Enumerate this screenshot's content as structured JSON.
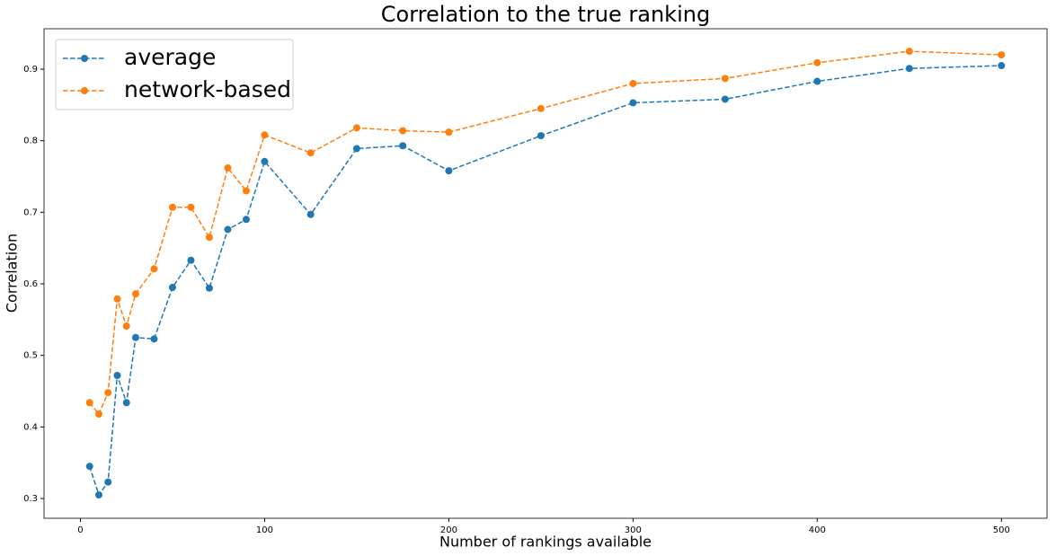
{
  "chart_data": {
    "type": "line",
    "title": "Correlation to the true ranking",
    "x_label": "Number of rankings available",
    "y_label": "Correlation",
    "x": [
      5,
      10,
      15,
      20,
      25,
      30,
      40,
      50,
      60,
      70,
      80,
      90,
      100,
      125,
      150,
      175,
      200,
      250,
      300,
      350,
      400,
      450,
      500
    ],
    "series": [
      {
        "name": "average",
        "color": "#1f77b4",
        "values": [
          0.345,
          0.305,
          0.323,
          0.472,
          0.434,
          0.525,
          0.523,
          0.595,
          0.633,
          0.594,
          0.676,
          0.69,
          0.771,
          0.697,
          0.789,
          0.793,
          0.758,
          0.807,
          0.853,
          0.858,
          0.883,
          0.901,
          0.905
        ]
      },
      {
        "name": "network-based",
        "color": "#ff7f0e",
        "values": [
          0.434,
          0.418,
          0.448,
          0.579,
          0.541,
          0.586,
          0.621,
          0.707,
          0.707,
          0.665,
          0.762,
          0.73,
          0.808,
          0.783,
          0.818,
          0.814,
          0.812,
          0.845,
          0.88,
          0.887,
          0.909,
          0.925,
          0.92
        ]
      }
    ],
    "xlim": [
      -19.75,
      524.75
    ],
    "xticks": [
      0,
      100,
      200,
      300,
      400,
      500
    ],
    "ylim": [
      0.2724,
      0.9565
    ],
    "yticks": [
      0.3,
      0.4,
      0.5,
      0.6,
      0.7,
      0.8,
      0.9
    ],
    "legend": "upper left"
  }
}
